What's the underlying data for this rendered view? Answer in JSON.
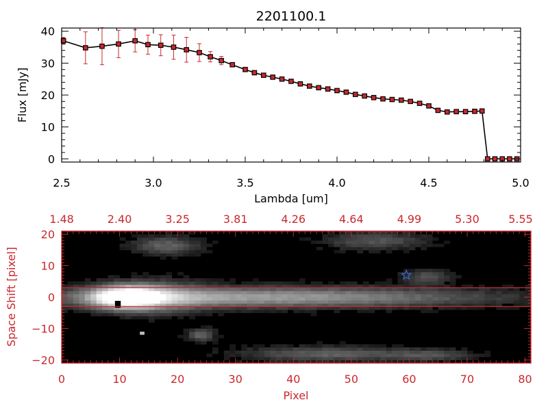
{
  "chart_data": [
    {
      "type": "line",
      "title": "2201100.1",
      "xlabel": "Lambda [um]",
      "ylabel": "Flux [mJy]",
      "xlim": [
        2.5,
        5.0
      ],
      "ylim": [
        -1,
        41
      ],
      "x_ticks": [
        2.5,
        3.0,
        3.5,
        4.0,
        4.5,
        5.0
      ],
      "x_tick_labels": [
        "2.5",
        "3.0",
        "3.5",
        "4.0",
        "4.5",
        "5.0"
      ],
      "y_ticks": [
        0,
        10,
        20,
        30,
        40
      ],
      "y_tick_labels": [
        "0",
        "10",
        "20",
        "30",
        "40"
      ],
      "grid": false,
      "series": [
        {
          "x": [
            2.51,
            2.63,
            2.72,
            2.81,
            2.9,
            2.97,
            3.04,
            3.11,
            3.18,
            3.25,
            3.31,
            3.37,
            3.43,
            3.5,
            3.55,
            3.6,
            3.65,
            3.7,
            3.75,
            3.8,
            3.85,
            3.9,
            3.95,
            4.0,
            4.05,
            4.1,
            4.15,
            4.2,
            4.25,
            4.3,
            4.35,
            4.4,
            4.45,
            4.5,
            4.55,
            4.6,
            4.65,
            4.7,
            4.75,
            4.79,
            4.82,
            4.86,
            4.9,
            4.94,
            4.98
          ],
          "y": [
            37.0,
            34.8,
            35.3,
            36.0,
            37.0,
            35.8,
            35.6,
            35.0,
            34.2,
            33.3,
            32.0,
            30.8,
            29.5,
            28.0,
            27.0,
            26.2,
            25.6,
            25.0,
            24.3,
            23.5,
            22.8,
            22.3,
            21.9,
            21.4,
            20.9,
            20.2,
            19.7,
            19.2,
            18.8,
            18.6,
            18.4,
            18.0,
            17.4,
            16.6,
            15.2,
            14.7,
            14.8,
            14.8,
            14.9,
            15.0,
            0.0,
            0.0,
            0.0,
            0.0,
            0.0
          ],
          "errors": [
            1.0,
            5.0,
            5.8,
            4.3,
            3.5,
            3.0,
            3.3,
            3.8,
            3.9,
            2.8,
            1.6,
            1.3,
            0.6,
            0.6,
            0.5,
            0.5,
            0.5,
            0.5,
            0.5,
            0.5,
            0.5,
            0.5,
            0.5,
            0.5,
            0.5,
            0.5,
            0.5,
            0.5,
            0.5,
            0.5,
            0.5,
            0.5,
            0.5,
            0.5,
            0.5,
            0.5,
            0.5,
            0.5,
            0.5,
            0.5,
            0.3,
            0.3,
            0.3,
            0.3,
            0.3
          ],
          "color": "#000000",
          "marker_color": "#c8282d",
          "error_color": "#c8282d"
        }
      ]
    },
    {
      "type": "heatmap",
      "xlabel": "Pixel",
      "ylabel": "Space Shift [pixel]",
      "xlim": [
        0,
        81
      ],
      "ylim": [
        -21,
        21
      ],
      "x_ticks": [
        0,
        10,
        20,
        30,
        40,
        50,
        60,
        70,
        80
      ],
      "x_tick_labels": [
        "0",
        "10",
        "20",
        "30",
        "40",
        "50",
        "60",
        "70",
        "80"
      ],
      "y_ticks": [
        -20,
        -10,
        0,
        10,
        20
      ],
      "y_tick_labels": [
        "−20",
        "−10",
        "0",
        "10",
        "20"
      ],
      "top_axis_labels": [
        "1.48",
        "2.40",
        "3.25",
        "3.81",
        "4.26",
        "4.64",
        "4.99",
        "5.30",
        "5.55"
      ],
      "axis_color": "#c8282d",
      "colormap": "grayscale",
      "extraction_band": [
        -3,
        3
      ],
      "band_color": "#c8282d",
      "star_marker": {
        "x": 59.5,
        "y": 7,
        "color": "#3a6ad8"
      },
      "sources": [
        {
          "x": 11,
          "y": 0,
          "sx": 4,
          "sy": 2.4,
          "amp": 1.0
        },
        {
          "x": 34,
          "y": 0,
          "sx": 26,
          "sy": 2.2,
          "amp": 0.55
        },
        {
          "x": 16,
          "y": 0,
          "sx": 6,
          "sy": 3.5,
          "amp": 0.35
        },
        {
          "x": 18,
          "y": 16.5,
          "sx": 4,
          "sy": 2.0,
          "amp": 0.3
        },
        {
          "x": 54,
          "y": 18,
          "sx": 6,
          "sy": 2.0,
          "amp": 0.25
        },
        {
          "x": 63,
          "y": 6.5,
          "sx": 2.8,
          "sy": 1.5,
          "amp": 0.25
        },
        {
          "x": 24,
          "y": -12,
          "sx": 1.6,
          "sy": 1.5,
          "amp": 0.3
        },
        {
          "x": 46,
          "y": -18,
          "sx": 10,
          "sy": 1.6,
          "amp": 0.3
        },
        {
          "x": 64,
          "y": -18.5,
          "sx": 5,
          "sy": 1.3,
          "amp": 0.2
        }
      ]
    }
  ]
}
